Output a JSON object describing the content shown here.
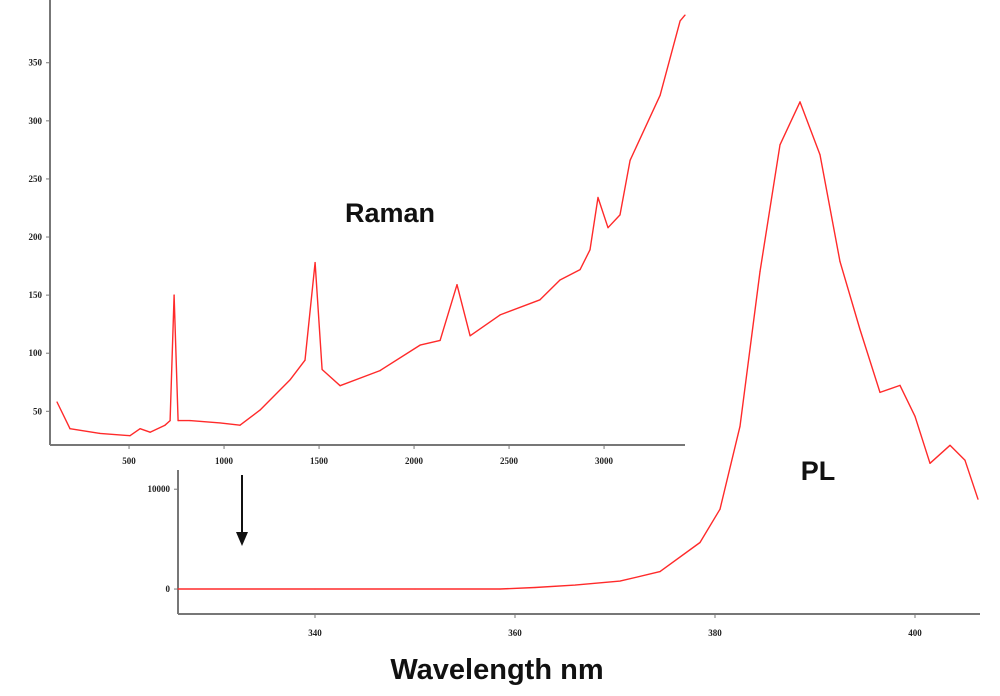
{
  "chart_data": [
    {
      "type": "line",
      "title": "",
      "xlabel": "Wavelength nm",
      "ylabel": "",
      "annotation": "PL",
      "xlim": [
        326.3,
        406.5
      ],
      "ylim": [
        -2500,
        55000
      ],
      "xticks": [
        "340",
        "360",
        "380",
        "400"
      ],
      "yticks": [
        "0",
        "10000"
      ],
      "grid": false,
      "color": "#ff2a2a",
      "series": [
        {
          "x": [
            326.3,
            340,
            350,
            358.5,
            362,
            366,
            370.5,
            374.5,
            378.5,
            380.5,
            382.5,
            384.5,
            386.5,
            388.5,
            390.5,
            392.5,
            394.5,
            396.5,
            398.5,
            400,
            401.5,
            403.5,
            405,
            406.3
          ],
          "y": [
            0,
            0,
            0,
            0,
            150,
            400,
            800,
            1750,
            4660,
            8000,
            16300,
            31800,
            44500,
            48800,
            43500,
            32800,
            26000,
            19700,
            20400,
            17300,
            12600,
            14400,
            12900,
            9000
          ]
        }
      ]
    },
    {
      "type": "line",
      "title": "",
      "xlabel": "",
      "ylabel": "",
      "annotation": "Raman",
      "xlim": [
        84,
        3426
      ],
      "ylim": [
        21,
        404
      ],
      "xticks": [
        "500",
        "1000",
        "1500",
        "2000",
        "2500",
        "3000"
      ],
      "yticks": [
        "50",
        "100",
        "150",
        "200",
        "250",
        "300",
        "350"
      ],
      "grid": false,
      "color": "#ff2a2a",
      "series": [
        {
          "x": [
            121,
            189,
            347,
            505,
            558,
            611,
            689,
            716,
            737,
            758,
            821,
            979,
            1084,
            1189,
            1347,
            1426,
            1479,
            1516,
            1611,
            1821,
            2032,
            2137,
            2226,
            2295,
            2453,
            2663,
            2768,
            2874,
            2926,
            2968,
            3021,
            3084,
            3137,
            3295,
            3400,
            3426
          ],
          "y": [
            58,
            35,
            31,
            29,
            35,
            32,
            38,
            42,
            150,
            42,
            42,
            40,
            38,
            51,
            77,
            94,
            178,
            86,
            72,
            85,
            107,
            111,
            159,
            115,
            133,
            146,
            163,
            172,
            189,
            234,
            208,
            219,
            266,
            322,
            386,
            391
          ]
        }
      ]
    }
  ]
}
